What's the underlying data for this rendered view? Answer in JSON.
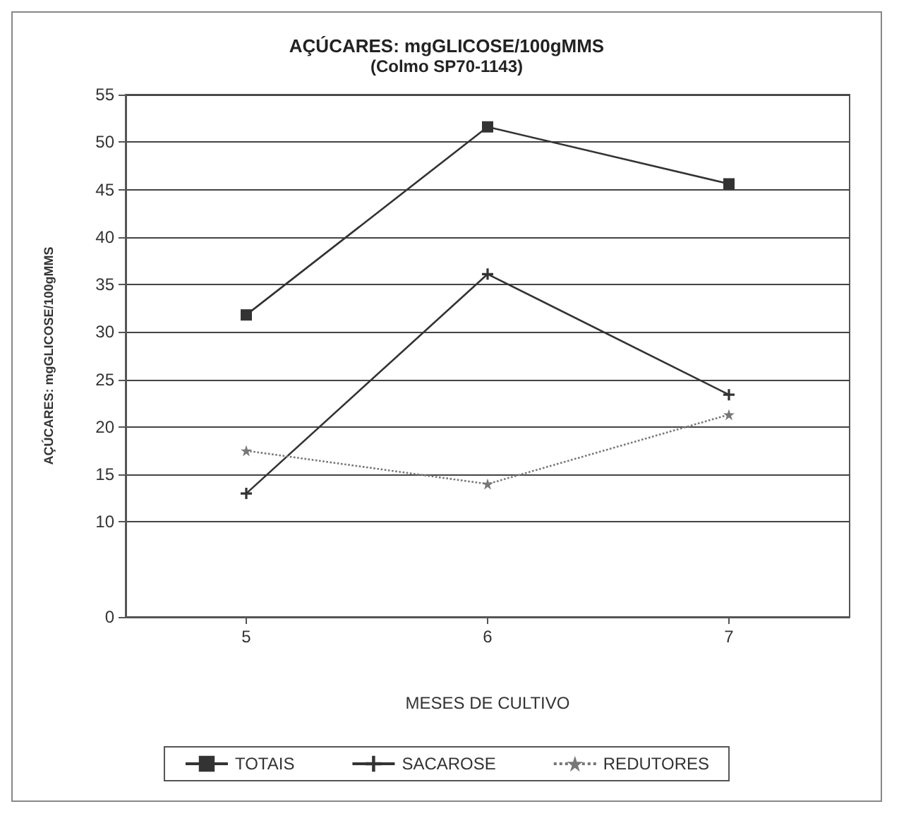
{
  "chart_data": {
    "type": "line",
    "title": "AÇÚCARES: mgGLICOSE/100gMMS",
    "subtitle": "(Colmo SP70-1143)",
    "xlabel": "MESES DE CULTIVO",
    "ylabel": "AÇÚCARES: mgGLICOSE/100gMMS",
    "categories": [
      "5",
      "6",
      "7"
    ],
    "series": [
      {
        "name": "TOTAIS",
        "color": "#333333",
        "marker": "square",
        "line_style": "solid",
        "values": [
          31.8,
          51.6,
          45.6
        ]
      },
      {
        "name": "SACAROSE",
        "color": "#333333",
        "marker": "cross",
        "line_style": "solid",
        "values": [
          13,
          36.1,
          23.4
        ]
      },
      {
        "name": "REDUTORES",
        "color": "#777777",
        "marker": "star",
        "line_style": "dotted",
        "values": [
          17.5,
          14,
          21.3
        ]
      }
    ],
    "ylim": [
      0,
      55
    ],
    "yticks": [
      0,
      10,
      15,
      20,
      25,
      30,
      35,
      40,
      45,
      50,
      55
    ],
    "grid": "y",
    "legend": "bottom"
  }
}
